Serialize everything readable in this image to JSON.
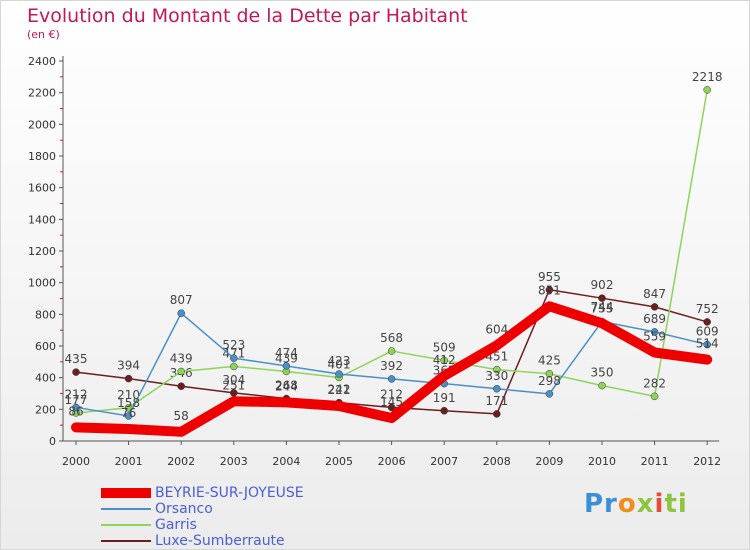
{
  "title": "Evolution du Montant de la Dette par Habitant",
  "subtitle": "(en €)",
  "logo": {
    "text": "Proxiti"
  },
  "chart_data": {
    "type": "line",
    "x": [
      "2000",
      "2001",
      "2002",
      "2003",
      "2004",
      "2005",
      "2006",
      "2007",
      "2008",
      "2009",
      "2010",
      "2011",
      "2012"
    ],
    "ylim": [
      0,
      2400
    ],
    "yticks": [
      0,
      200,
      400,
      600,
      800,
      1000,
      1200,
      1400,
      1600,
      1800,
      2000,
      2200,
      2400
    ],
    "grid": false,
    "legend": "bottom-left",
    "series": [
      {
        "name": "BEYRIE-SUR-JOYEUSE",
        "color": "#ee0000",
        "values": [
          86,
          76,
          58,
          251,
          244,
          221,
          145,
          412,
          604,
          851,
          744,
          559,
          514
        ]
      },
      {
        "name": "Orsanco",
        "color": "#4a90c8",
        "values": [
          212,
          158,
          807,
          523,
          474,
          423,
          392,
          362,
          330,
          298,
          755,
          689,
          609
        ]
      },
      {
        "name": "Garris",
        "color": "#8fd45a",
        "values": [
          177,
          210,
          439,
          471,
          439,
          401,
          568,
          509,
          451,
          425,
          350,
          282,
          2218
        ]
      },
      {
        "name": "Luxe-Sumberraute",
        "color": "#6b1e1e",
        "values": [
          435,
          394,
          346,
          304,
          268,
          242,
          212,
          191,
          171,
          955,
          902,
          847,
          752
        ]
      }
    ]
  }
}
